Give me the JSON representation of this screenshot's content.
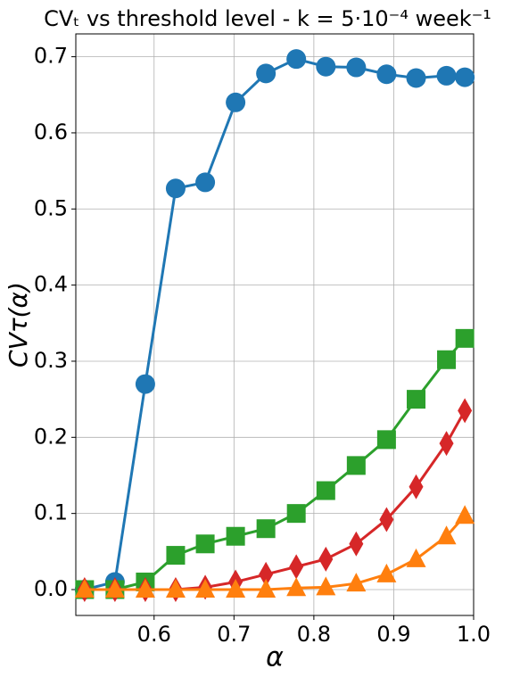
{
  "chart_data": {
    "type": "line",
    "title": "CVₜ vs threshold level - k = 5·10⁻⁴ week⁻¹",
    "x_label": "α",
    "y_label": "CVτ(α)",
    "x": [
      0.513,
      0.551,
      0.589,
      0.627,
      0.664,
      0.702,
      0.74,
      0.778,
      0.815,
      0.853,
      0.891,
      0.928,
      0.966,
      0.989
    ],
    "series": [
      {
        "color": "#1f77b4",
        "marker": "circle",
        "values": [
          0.0,
          0.01,
          0.27,
          0.527,
          0.535,
          0.64,
          0.678,
          0.697,
          0.687,
          0.686,
          0.677,
          0.672,
          0.675,
          0.673
        ]
      },
      {
        "color": "#2ca02c",
        "marker": "square",
        "values": [
          0.0,
          0.0,
          0.01,
          0.045,
          0.06,
          0.07,
          0.08,
          0.1,
          0.13,
          0.163,
          0.197,
          0.25,
          0.302,
          0.33
        ]
      },
      {
        "color": "#d62728",
        "marker": "diamond",
        "values": [
          0.0,
          0.0,
          0.0,
          0.0,
          0.003,
          0.01,
          0.02,
          0.03,
          0.04,
          0.06,
          0.092,
          0.135,
          0.192,
          0.235
        ]
      },
      {
        "color": "#ff7f0e",
        "marker": "triangle",
        "values": [
          0.0,
          0.0,
          0.0,
          0.0,
          0.0,
          0.0,
          0.0,
          0.002,
          0.003,
          0.008,
          0.02,
          0.04,
          0.07,
          0.097
        ]
      }
    ],
    "xlim": [
      0.502,
      1.0
    ],
    "xticks": [
      0.6,
      0.7,
      0.8,
      0.9,
      {
        "value": 1.0,
        "label": "1.0"
      }
    ],
    "ylim": [
      -0.034,
      0.73
    ],
    "yticks": [
      {
        "value": 0,
        "label": "0.0"
      },
      0.1,
      0.2,
      0.3,
      0.4,
      0.5,
      0.6,
      0.7
    ],
    "grid": true
  }
}
